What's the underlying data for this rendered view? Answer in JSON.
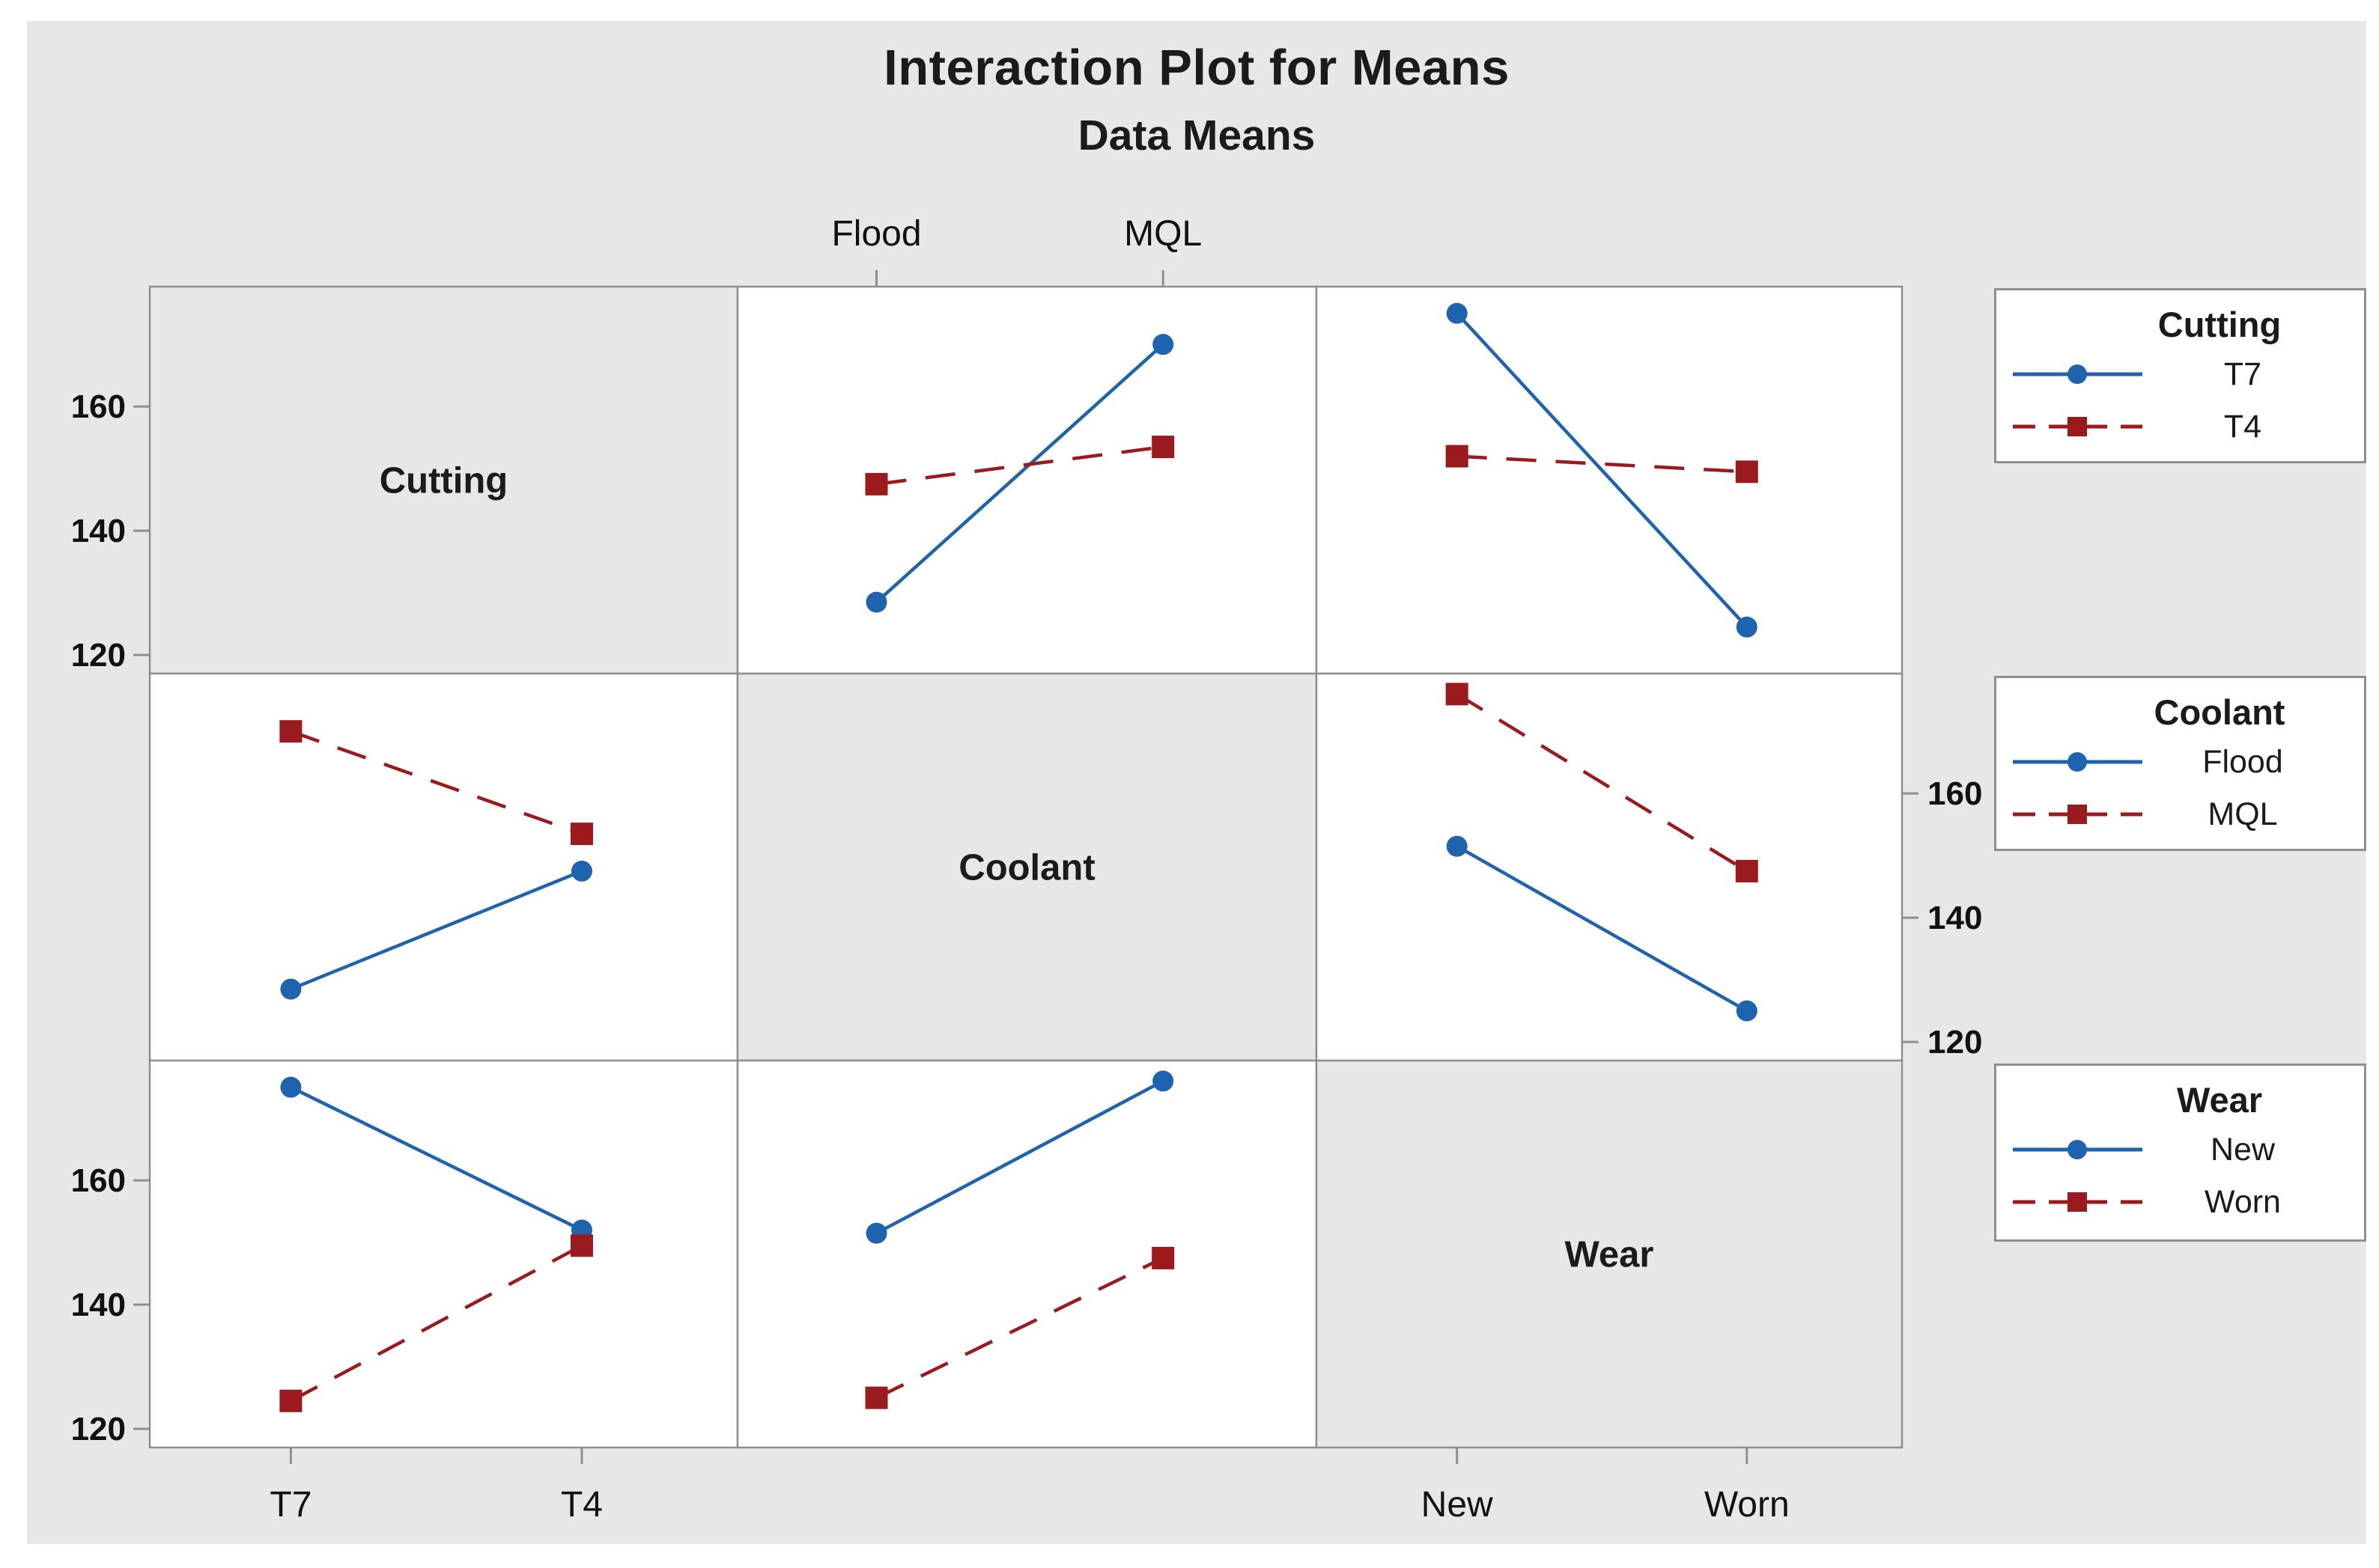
{
  "figure": {
    "title": "Interaction Plot for Means",
    "subtitle": "Data Means",
    "colors": {
      "series1": "#1E63AE",
      "series2": "#9A1A1E",
      "panel_bg": "#FFFFFF",
      "diag_bg": "#E7E7E7",
      "border": "#8F8F8F",
      "text": "#1B1B1B"
    }
  },
  "chart_data": {
    "type": "line",
    "subtype": "interaction-plot-matrix",
    "title": "Interaction Plot for Means",
    "subtitle": "Data Means",
    "factors": [
      {
        "name": "Cutting",
        "levels": [
          "T7",
          "T4"
        ]
      },
      {
        "name": "Coolant",
        "levels": [
          "Flood",
          "MQL"
        ]
      },
      {
        "name": "Wear",
        "levels": [
          "New",
          "Worn"
        ]
      }
    ],
    "y_ticks": [
      120,
      140,
      160
    ],
    "y_range": [
      117,
      179.3
    ],
    "grid": false,
    "tables": [
      {
        "row_factor": "Cutting",
        "col_factor": "Coolant",
        "values": {
          "T7": {
            "Flood": 128.5,
            "MQL": 170
          },
          "T4": {
            "Flood": 147.5,
            "MQL": 153.5
          }
        }
      },
      {
        "row_factor": "Cutting",
        "col_factor": "Wear",
        "values": {
          "T7": {
            "New": 175,
            "Worn": 124.5
          },
          "T4": {
            "New": 152,
            "Worn": 149.5
          }
        }
      },
      {
        "row_factor": "Coolant",
        "col_factor": "Wear",
        "values": {
          "Flood": {
            "New": 151.5,
            "Worn": 125
          },
          "MQL": {
            "New": 176,
            "Worn": 147.5
          }
        }
      }
    ],
    "legends": [
      {
        "title": "Cutting",
        "entries": [
          "T7",
          "T4"
        ]
      },
      {
        "title": "Coolant",
        "entries": [
          "Flood",
          "MQL"
        ]
      },
      {
        "title": "Wear",
        "entries": [
          "New",
          "Worn"
        ]
      }
    ],
    "legend_position": "right"
  }
}
